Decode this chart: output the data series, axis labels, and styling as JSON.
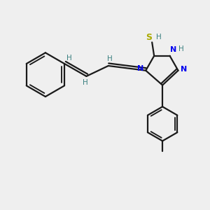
{
  "background_color": "#efefef",
  "bond_color": "#1a1a1a",
  "N_color": "#0000ee",
  "S_color": "#aaaa00",
  "H_color": "#3a8080",
  "figsize": [
    3.0,
    3.0
  ],
  "dpi": 100,
  "xlim": [
    0,
    10
  ],
  "ylim": [
    0,
    10
  ]
}
